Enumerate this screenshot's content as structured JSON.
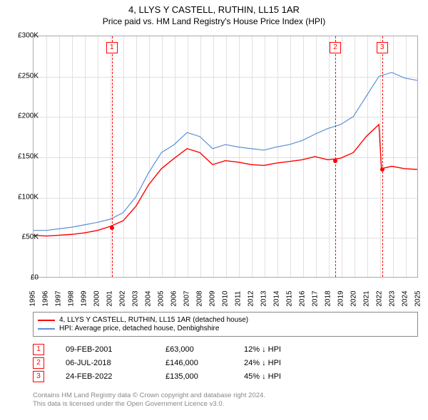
{
  "title1": "4, LLYS Y CASTELL, RUTHIN, LL15 1AR",
  "title2": "Price paid vs. HM Land Registry's House Price Index (HPI)",
  "chart": {
    "type": "line",
    "background_color": "#ffffff",
    "grid_color": "#e0e0e0",
    "border_color": "#aaaaaa",
    "ylim": [
      0,
      300000
    ],
    "ytick_step": 50000,
    "yticks": [
      "£0",
      "£50K",
      "£100K",
      "£150K",
      "£200K",
      "£250K",
      "£300K"
    ],
    "xlim": [
      1995,
      2025
    ],
    "xticks": [
      1995,
      1996,
      1997,
      1998,
      1999,
      2000,
      2001,
      2002,
      2003,
      2004,
      2005,
      2006,
      2007,
      2008,
      2009,
      2010,
      2011,
      2012,
      2013,
      2014,
      2015,
      2016,
      2017,
      2018,
      2019,
      2020,
      2021,
      2022,
      2023,
      2024,
      2025
    ],
    "series_hpi": {
      "color": "#5b8fd6",
      "width": 1.2,
      "points": [
        [
          1995,
          58000
        ],
        [
          1996,
          58000
        ],
        [
          1997,
          60000
        ],
        [
          1998,
          62000
        ],
        [
          1999,
          65000
        ],
        [
          2000,
          68000
        ],
        [
          2001,
          72000
        ],
        [
          2002,
          80000
        ],
        [
          2003,
          100000
        ],
        [
          2004,
          130000
        ],
        [
          2005,
          155000
        ],
        [
          2006,
          165000
        ],
        [
          2007,
          180000
        ],
        [
          2008,
          175000
        ],
        [
          2009,
          160000
        ],
        [
          2010,
          165000
        ],
        [
          2011,
          162000
        ],
        [
          2012,
          160000
        ],
        [
          2013,
          158000
        ],
        [
          2014,
          162000
        ],
        [
          2015,
          165000
        ],
        [
          2016,
          170000
        ],
        [
          2017,
          178000
        ],
        [
          2018,
          185000
        ],
        [
          2019,
          190000
        ],
        [
          2020,
          200000
        ],
        [
          2021,
          225000
        ],
        [
          2022,
          250000
        ],
        [
          2023,
          255000
        ],
        [
          2024,
          248000
        ],
        [
          2025,
          245000
        ]
      ]
    },
    "series_property": {
      "color": "#ff0000",
      "width": 1.4,
      "points": [
        [
          1995,
          52000
        ],
        [
          1996,
          51000
        ],
        [
          1997,
          52000
        ],
        [
          1998,
          53000
        ],
        [
          1999,
          55000
        ],
        [
          2000,
          58000
        ],
        [
          2001,
          63000
        ],
        [
          2002,
          70000
        ],
        [
          2003,
          88000
        ],
        [
          2004,
          115000
        ],
        [
          2005,
          135000
        ],
        [
          2006,
          148000
        ],
        [
          2007,
          160000
        ],
        [
          2008,
          155000
        ],
        [
          2009,
          140000
        ],
        [
          2010,
          145000
        ],
        [
          2011,
          143000
        ],
        [
          2012,
          140000
        ],
        [
          2013,
          139000
        ],
        [
          2014,
          142000
        ],
        [
          2015,
          144000
        ],
        [
          2016,
          146000
        ],
        [
          2017,
          150000
        ],
        [
          2018,
          146000
        ],
        [
          2019,
          148000
        ],
        [
          2020,
          155000
        ],
        [
          2021,
          175000
        ],
        [
          2022,
          190000
        ],
        [
          2022.2,
          135000
        ],
        [
          2023,
          138000
        ],
        [
          2024,
          135000
        ],
        [
          2025,
          134000
        ]
      ]
    },
    "sales": [
      {
        "n": "1",
        "year": 2001.1,
        "price": 63000,
        "date": "09-FEB-2001",
        "price_str": "£63,000",
        "diff": "12% ↓ HPI"
      },
      {
        "n": "2",
        "year": 2018.5,
        "price": 146000,
        "date": "06-JUL-2018",
        "price_str": "£146,000",
        "diff": "24% ↓ HPI"
      },
      {
        "n": "3",
        "year": 2022.15,
        "price": 135000,
        "date": "24-FEB-2022",
        "price_str": "£135,000",
        "diff": "45% ↓ HPI"
      }
    ],
    "marker_box_color": "#ff0000"
  },
  "legend": {
    "items": [
      {
        "color": "#ff0000",
        "label": "4, LLYS Y CASTELL, RUTHIN, LL15 1AR (detached house)"
      },
      {
        "color": "#5b8fd6",
        "label": "HPI: Average price, detached house, Denbighshire"
      }
    ]
  },
  "footer1": "Contains HM Land Registry data © Crown copyright and database right 2024.",
  "footer2": "This data is licensed under the Open Government Licence v3.0."
}
